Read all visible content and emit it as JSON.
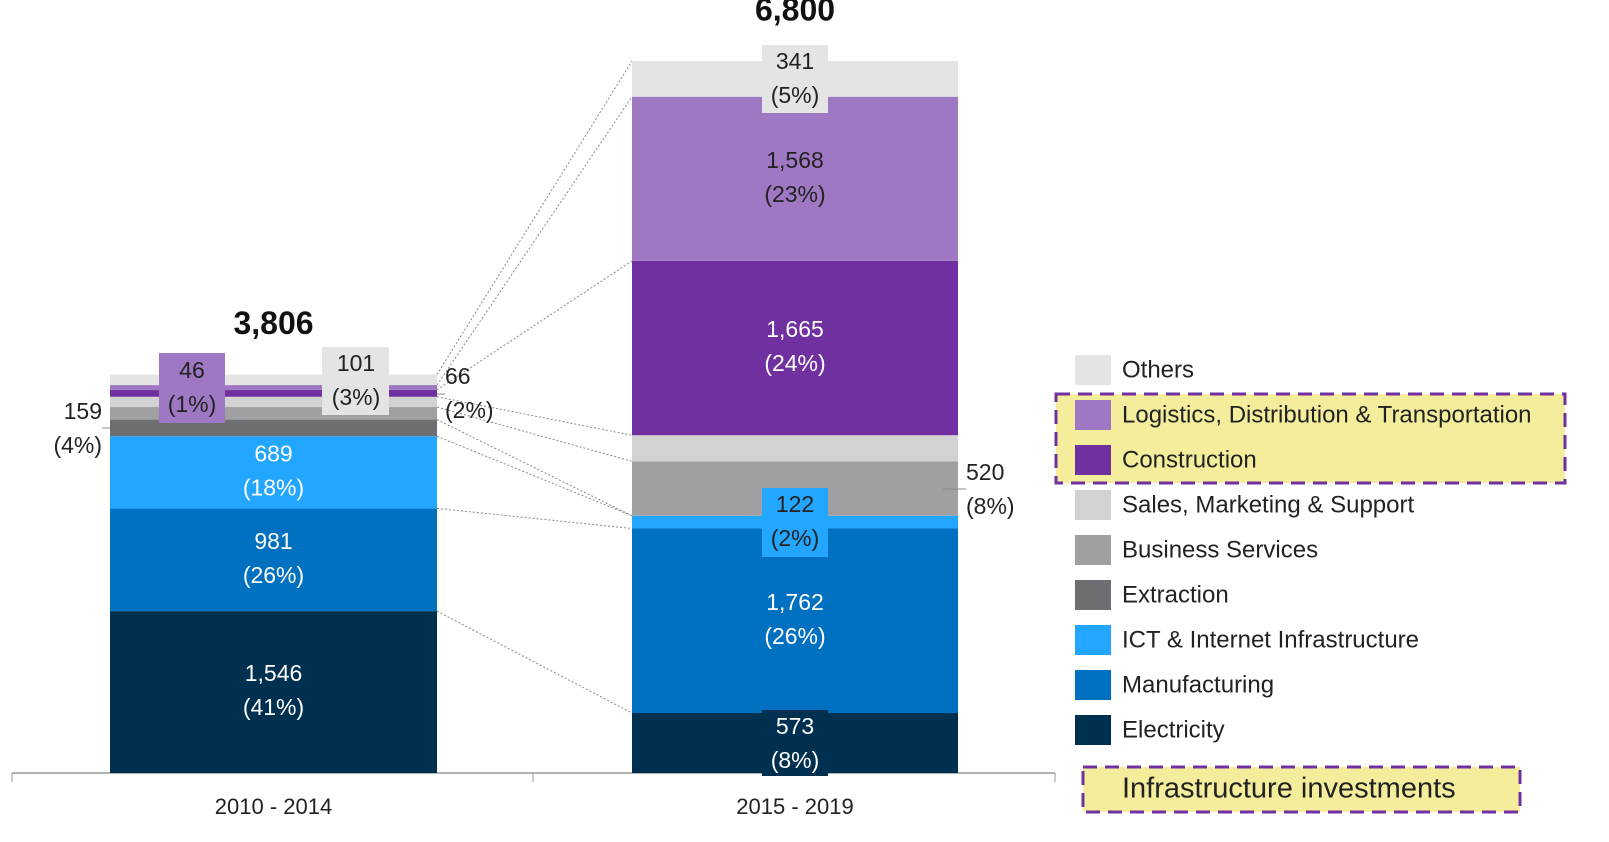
{
  "chart_data": {
    "type": "stacked_bar",
    "categories": [
      "2010 - 2014",
      "2015 - 2019"
    ],
    "ylim": [
      0,
      6800
    ],
    "totals": [
      3806,
      6800
    ],
    "total_labels": [
      "3,806",
      "6,800"
    ],
    "series": [
      {
        "name": "Electricity",
        "color": "#00304f",
        "values": [
          1546,
          573
        ],
        "value_labels": [
          "1,546",
          "573"
        ],
        "pct_labels": [
          "(41%)",
          "(8%)"
        ]
      },
      {
        "name": "Manufacturing",
        "color": "#0070c0",
        "values": [
          981,
          1762
        ],
        "value_labels": [
          "981",
          "1,762"
        ],
        "pct_labels": [
          "(26%)",
          "(26%)"
        ]
      },
      {
        "name": "ICT & Internet Infrastructure",
        "color": "#22a6ff",
        "values": [
          689,
          122
        ],
        "value_labels": [
          "689",
          "122"
        ],
        "pct_labels": [
          "(18%)",
          "(2%)"
        ]
      },
      {
        "name": "Extraction",
        "color": "#6d6e71",
        "values": [
          159,
          0
        ],
        "value_labels": [
          "159",
          null
        ],
        "pct_labels": [
          "(4%)",
          null
        ]
      },
      {
        "name": "Business Services",
        "color": "#a0a0a2",
        "values": [
          120,
          520
        ],
        "value_labels": [
          null,
          "520"
        ],
        "pct_labels": [
          null,
          "(8%)"
        ]
      },
      {
        "name": "Sales, Marketing & Support",
        "color": "#d2d2d3",
        "values": [
          98,
          249
        ],
        "value_labels": [
          null,
          null
        ],
        "pct_labels": [
          null,
          null
        ]
      },
      {
        "name": "Construction",
        "color": "#7030a0",
        "values": [
          66,
          1665
        ],
        "value_labels": [
          "66",
          "1,665"
        ],
        "pct_labels": [
          "(2%)",
          "(24%)"
        ]
      },
      {
        "name": "Logistics, Distribution & Transportation",
        "color": "#9e78c2",
        "values": [
          46,
          1568
        ],
        "value_labels": [
          "46",
          "1,568"
        ],
        "pct_labels": [
          "(1%)",
          "(23%)"
        ]
      },
      {
        "name": "Others",
        "color": "#e4e4e5",
        "values": [
          101,
          341
        ],
        "value_labels": [
          "101",
          "341"
        ],
        "pct_labels": [
          "(3%)",
          "(5%)"
        ]
      }
    ],
    "highlight": {
      "label": "Infrastructure investments",
      "series": [
        6,
        7
      ],
      "color": "#f4ee9c",
      "border": "#7030a0"
    }
  }
}
